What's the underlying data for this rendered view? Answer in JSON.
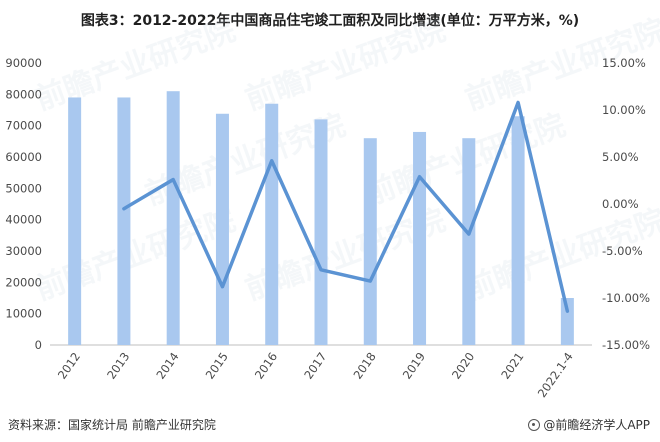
{
  "title": "图表3：2012-2022年中国商品住宅竣工面积及同比增速(单位：万平方米，%)",
  "footer": {
    "source": "资料来源：国家统计局 前瞻产业研究院",
    "brand": "@前瞻经济学人APP",
    "logo_icon": "qianzhan-logo-icon"
  },
  "watermark": "前瞻产业研究院",
  "colors": {
    "bar": "#a9c8ef",
    "line": "#5b93d3"
  },
  "chart_data": {
    "type": "bar+line",
    "categories": [
      "2012",
      "2013",
      "2014",
      "2015",
      "2016",
      "2017",
      "2018",
      "2019",
      "2020",
      "2021",
      "2022.1-4"
    ],
    "series": [
      {
        "type": "bar",
        "axis": "left",
        "values": [
          79000,
          79000,
          81000,
          73800,
          77000,
          72000,
          66000,
          68000,
          66000,
          73000,
          15000
        ]
      },
      {
        "type": "line",
        "axis": "right",
        "values": [
          null,
          -0.5,
          2.6,
          -8.8,
          4.6,
          -7.0,
          -8.2,
          2.9,
          -3.2,
          10.8,
          -11.4
        ]
      }
    ],
    "left_axis": {
      "min": 0,
      "max": 90000,
      "step": 10000,
      "ticks": [
        "0",
        "10000",
        "20000",
        "30000",
        "40000",
        "50000",
        "60000",
        "70000",
        "80000",
        "90000"
      ]
    },
    "right_axis": {
      "min": -15,
      "max": 15,
      "step": 5,
      "ticks": [
        "-15.00%",
        "-10.00%",
        "-5.00%",
        "0.00%",
        "5.00%",
        "10.00%",
        "15.00%"
      ]
    },
    "grid": false,
    "legend": false
  }
}
